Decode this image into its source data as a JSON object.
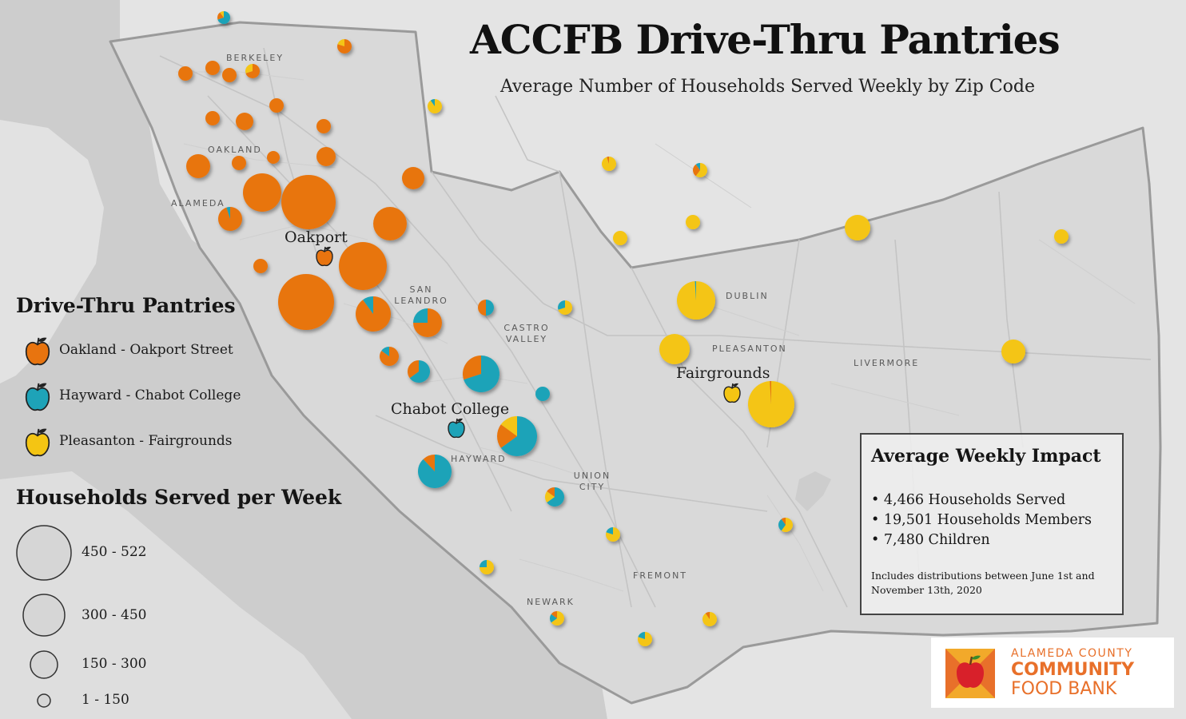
{
  "title": "ACCFB Drive-Thru Pantries",
  "subtitle": "Average Number of Households Served Weekly by Zip Code",
  "colors": {
    "oakland": "#e8740f",
    "hayward": "#1ea3b8",
    "pleasanton": "#f4c513",
    "land": "#e6e6e6",
    "water": "#cfcfcf",
    "county": "#dadada"
  },
  "place_labels": [
    "BERKELEY",
    "OAKLAND",
    "ALAMEDA",
    "SAN LEANDRO",
    "CASTRO VALLEY",
    "DUBLIN",
    "PLEASANTON",
    "LIVERMORE",
    "HAYWARD",
    "UNION CITY",
    "FREMONT",
    "NEWARK"
  ],
  "sites": [
    {
      "label": "Oakport",
      "icon": "orange-apple-icon",
      "color": "#e8740f"
    },
    {
      "label": "Chabot College",
      "icon": "teal-apple-icon",
      "color": "#1ea3b8"
    },
    {
      "label": "Fairgrounds",
      "icon": "yellow-apple-icon",
      "color": "#f4c513"
    }
  ],
  "legend": {
    "pantries_title": "Drive-Thru Pantries",
    "pantries": [
      {
        "label": "Oakland - Oakport Street",
        "icon": "orange-apple-icon",
        "color": "#e8740f"
      },
      {
        "label": "Hayward - Chabot College",
        "icon": "teal-apple-icon",
        "color": "#1ea3b8"
      },
      {
        "label": "Pleasanton - Fairgrounds",
        "icon": "yellow-apple-icon",
        "color": "#f4c513"
      }
    ],
    "size_title": "Households Served per Week",
    "sizes": [
      {
        "label": "450 - 522"
      },
      {
        "label": "300 - 450"
      },
      {
        "label": "150 - 300"
      },
      {
        "label": "1 - 150"
      }
    ]
  },
  "impact": {
    "title": "Average Weekly Impact",
    "items": [
      "4,466 Households Served",
      "19,501 Households Members",
      "7,480 Children"
    ],
    "note": "Includes distributions between June 1st and November 13th, 2020"
  },
  "logo": {
    "line1": "ALAMEDA COUNTY",
    "line2": "COMMUNITY",
    "line3": "FOOD BANK"
  }
}
